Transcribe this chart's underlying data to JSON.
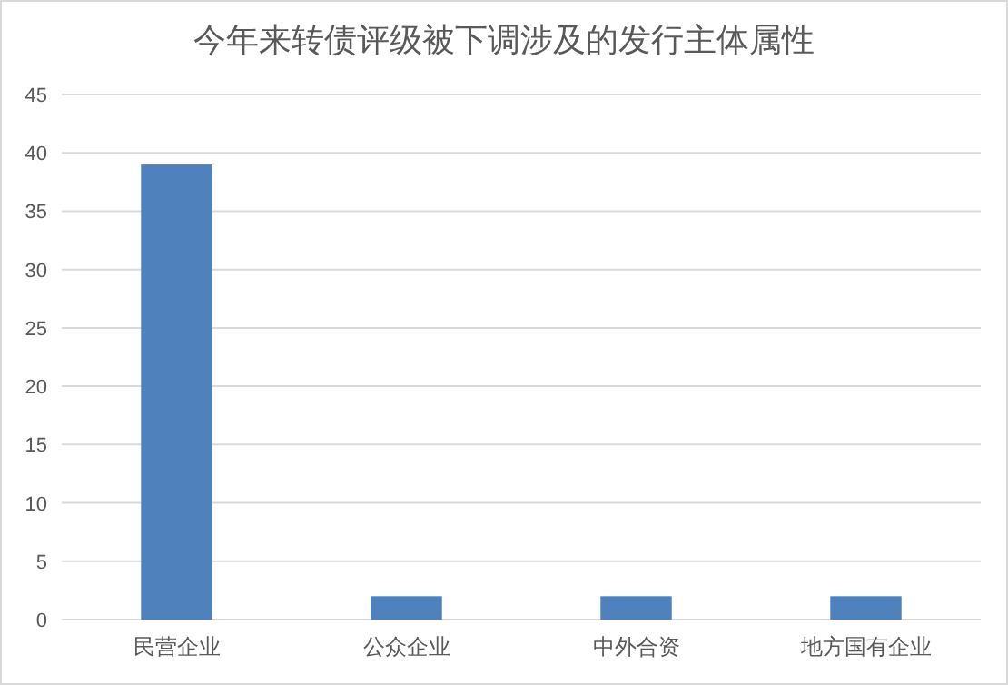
{
  "chart_data": {
    "type": "bar",
    "title": "今年来转债评级被下调涉及的发行主体属性",
    "categories": [
      "民营企业",
      "公众企业",
      "中外合资",
      "地方国有企业"
    ],
    "values": [
      39,
      2,
      2,
      2
    ],
    "color": "#4f81bd",
    "ylim": [
      0,
      45
    ],
    "yticks": [
      0,
      5,
      10,
      15,
      20,
      25,
      30,
      35,
      40,
      45
    ],
    "grid": "y"
  }
}
